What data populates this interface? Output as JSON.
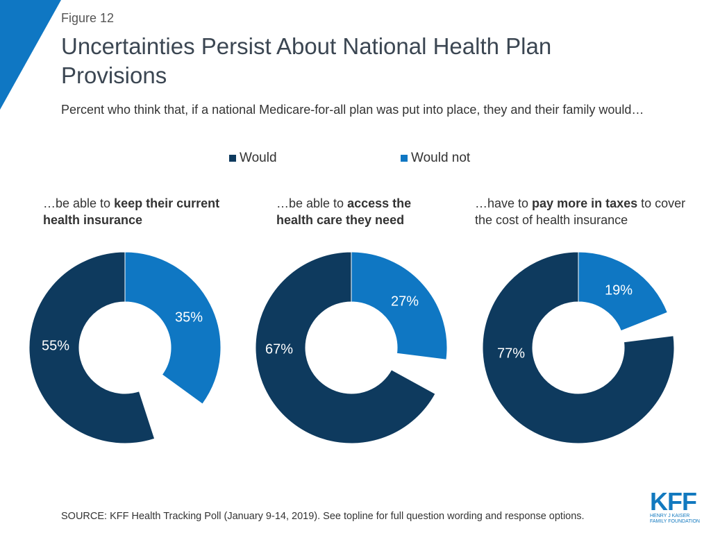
{
  "figure": {
    "label": "Figure 12",
    "title": "Uncertainties Persist About National Health Plan Provisions",
    "subtitle": "Percent who think that, if a national Medicare-for-all plan was put into place, they and their family would…"
  },
  "legend": [
    {
      "name": "Would",
      "color": "#0e3a5e"
    },
    {
      "name": "Would not",
      "color": "#0f77c3"
    }
  ],
  "panels": [
    {
      "prefix": "…be able to ",
      "bold": "keep their current health insurance",
      "suffix": ""
    },
    {
      "prefix": "…be able to ",
      "bold": "access the health care they need",
      "suffix": ""
    },
    {
      "prefix": "…have to ",
      "bold": "pay more in taxes",
      "suffix": " to cover the cost of health insurance"
    }
  ],
  "chart_data": {
    "type": "pie",
    "style": "donut",
    "series_names": [
      "Would not",
      "Would"
    ],
    "colors": {
      "Would": "#0e3a5e",
      "Would not": "#0f77c3"
    },
    "charts": [
      {
        "title": "…be able to keep their current health insurance",
        "values": {
          "Would not": 35,
          "Would": 55
        },
        "labels": {
          "Would not": "35%",
          "Would": "55%"
        }
      },
      {
        "title": "…be able to access the health care they need",
        "values": {
          "Would not": 27,
          "Would": 67
        },
        "labels": {
          "Would not": "27%",
          "Would": "67%"
        }
      },
      {
        "title": "…have to pay more in taxes to cover the cost of health insurance",
        "values": {
          "Would not": 19,
          "Would": 77
        },
        "labels": {
          "Would not": "19%",
          "Would": "77%"
        }
      }
    ]
  },
  "source": "SOURCE: KFF Health Tracking Poll (January 9-14, 2019). See topline for full question wording and response options.",
  "brand": {
    "mark": "KFF",
    "line1": "Henry J Kaiser",
    "line2": "Family Foundation"
  }
}
